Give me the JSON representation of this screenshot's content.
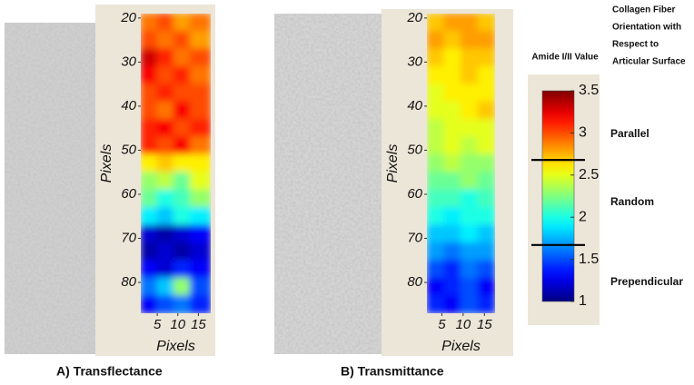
{
  "chart_data": [
    {
      "type": "heatmap",
      "caption": "A) Transflectance",
      "xlabel": "Pixels",
      "ylabel": "Pixels",
      "xlim": [
        1,
        18
      ],
      "ylim": [
        19,
        87
      ],
      "xticks": [
        5,
        10,
        15
      ],
      "yticks": [
        20,
        30,
        40,
        50,
        60,
        70,
        80
      ],
      "x": [
        3,
        7,
        11,
        15
      ],
      "y": [
        21,
        25,
        29,
        33,
        37,
        41,
        45,
        49,
        53,
        57,
        61,
        65,
        69,
        73,
        77,
        81,
        85
      ],
      "z": [
        [
          2.9,
          3.0,
          2.8,
          2.9
        ],
        [
          3.0,
          2.9,
          3.0,
          2.8
        ],
        [
          3.3,
          3.1,
          2.9,
          3.0
        ],
        [
          3.2,
          3.0,
          3.1,
          2.9
        ],
        [
          3.0,
          3.1,
          3.0,
          3.0
        ],
        [
          3.0,
          2.9,
          3.2,
          3.0
        ],
        [
          3.1,
          3.2,
          3.0,
          3.1
        ],
        [
          3.1,
          3.0,
          3.2,
          2.9
        ],
        [
          2.6,
          2.7,
          2.6,
          2.6
        ],
        [
          2.3,
          2.4,
          2.2,
          2.5
        ],
        [
          2.2,
          2.0,
          2.1,
          2.3
        ],
        [
          1.9,
          1.8,
          2.0,
          1.9
        ],
        [
          1.2,
          1.1,
          1.2,
          1.3
        ],
        [
          1.1,
          1.2,
          1.1,
          1.2
        ],
        [
          1.3,
          1.2,
          1.4,
          1.3
        ],
        [
          1.6,
          1.8,
          2.3,
          1.5
        ],
        [
          1.3,
          1.5,
          1.6,
          1.4
        ]
      ]
    },
    {
      "type": "heatmap",
      "caption": "B) Transmittance",
      "xlabel": "Pixels",
      "ylabel": "Pixels",
      "xlim": [
        1.5,
        17.5
      ],
      "ylim": [
        19,
        87
      ],
      "xticks": [
        5,
        10,
        15
      ],
      "yticks": [
        20,
        30,
        40,
        50,
        60,
        70,
        80
      ],
      "x": [
        3.5,
        7.5,
        11.5,
        15.5
      ],
      "y": [
        21,
        25,
        29,
        33,
        37,
        41,
        45,
        49,
        53,
        57,
        61,
        65,
        69,
        73,
        77,
        81,
        85
      ],
      "z": [
        [
          2.7,
          2.8,
          2.8,
          2.7
        ],
        [
          2.8,
          2.7,
          2.8,
          2.8
        ],
        [
          2.7,
          2.6,
          2.7,
          2.7
        ],
        [
          2.6,
          2.6,
          2.7,
          2.6
        ],
        [
          2.5,
          2.6,
          2.6,
          2.6
        ],
        [
          2.5,
          2.5,
          2.6,
          2.7
        ],
        [
          2.4,
          2.5,
          2.5,
          2.5
        ],
        [
          2.4,
          2.5,
          2.4,
          2.5
        ],
        [
          2.3,
          2.4,
          2.3,
          2.3
        ],
        [
          2.2,
          2.2,
          2.3,
          2.2
        ],
        [
          2.1,
          2.1,
          2.0,
          2.1
        ],
        [
          2.0,
          1.9,
          2.0,
          2.0
        ],
        [
          1.8,
          1.8,
          1.9,
          1.8
        ],
        [
          1.7,
          1.6,
          1.7,
          1.7
        ],
        [
          1.5,
          1.4,
          1.6,
          1.5
        ],
        [
          1.3,
          1.4,
          1.5,
          1.3
        ],
        [
          1.4,
          1.3,
          1.5,
          1.4
        ]
      ]
    },
    {
      "type": "colorbar",
      "title": "Amide I/II Value",
      "colormap": "jet",
      "clim": [
        1,
        3.5
      ],
      "ticks": [
        1,
        1.5,
        2,
        2.5,
        3,
        3.5
      ],
      "thresholds": [
        2.68,
        1.67
      ],
      "annotation": [
        "Collagen Fiber",
        "Orientation with",
        "Respect to",
        "Articular Surface"
      ],
      "region_labels": [
        "Parallel",
        "Random",
        "Prependicular"
      ]
    }
  ]
}
